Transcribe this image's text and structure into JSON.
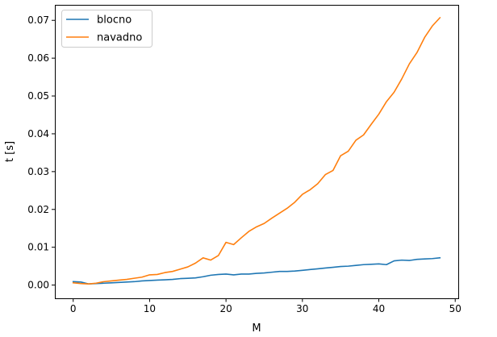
{
  "chart_data": {
    "type": "line",
    "xlabel": "M",
    "ylabel": "t [s]",
    "xlim": [
      -2.4,
      50.4
    ],
    "ylim": [
      -0.0035,
      0.0741
    ],
    "xticks": [
      0,
      10,
      20,
      30,
      40,
      50
    ],
    "xtick_labels": [
      "0",
      "10",
      "20",
      "30",
      "40",
      "50"
    ],
    "yticks": [
      0.0,
      0.01,
      0.02,
      0.03,
      0.04,
      0.05,
      0.06,
      0.07
    ],
    "ytick_labels": [
      "0.00",
      "0.01",
      "0.02",
      "0.03",
      "0.04",
      "0.05",
      "0.06",
      "0.07"
    ],
    "grid": false,
    "legend_position": "top-left",
    "x": [
      0,
      1,
      2,
      3,
      4,
      5,
      6,
      7,
      8,
      9,
      10,
      11,
      12,
      13,
      14,
      15,
      16,
      17,
      18,
      19,
      20,
      21,
      22,
      23,
      24,
      25,
      26,
      27,
      28,
      29,
      30,
      31,
      32,
      33,
      34,
      35,
      36,
      37,
      38,
      39,
      40,
      41,
      42,
      43,
      44,
      45,
      46,
      47,
      48
    ],
    "series": [
      {
        "name": "blocno",
        "color": "#1f77b4",
        "values": [
          0.0009,
          0.0008,
          0.0003,
          0.0004,
          0.0005,
          0.0006,
          0.0007,
          0.0008,
          0.0009,
          0.0011,
          0.0012,
          0.0013,
          0.0014,
          0.0015,
          0.0017,
          0.0018,
          0.0019,
          0.0022,
          0.0026,
          0.0028,
          0.0029,
          0.0027,
          0.0029,
          0.0029,
          0.0031,
          0.0032,
          0.0034,
          0.0036,
          0.0036,
          0.0037,
          0.0039,
          0.0041,
          0.0043,
          0.0045,
          0.0047,
          0.0049,
          0.005,
          0.0052,
          0.0054,
          0.0055,
          0.0056,
          0.0054,
          0.0064,
          0.0066,
          0.0065,
          0.0068,
          0.0069,
          0.007,
          0.0072
        ]
      },
      {
        "name": "navadno",
        "color": "#ff7f0e",
        "values": [
          0.0006,
          0.0004,
          0.0003,
          0.0005,
          0.0009,
          0.0011,
          0.0013,
          0.0015,
          0.0018,
          0.0021,
          0.0027,
          0.0028,
          0.0033,
          0.0036,
          0.0042,
          0.0048,
          0.0058,
          0.0072,
          0.0066,
          0.0078,
          0.0113,
          0.0107,
          0.0125,
          0.0142,
          0.0154,
          0.0163,
          0.0177,
          0.019,
          0.0203,
          0.0219,
          0.024,
          0.0252,
          0.0268,
          0.0292,
          0.0303,
          0.0342,
          0.0354,
          0.0383,
          0.0397,
          0.0425,
          0.0452,
          0.0485,
          0.051,
          0.0545,
          0.0585,
          0.0615,
          0.0655,
          0.0685,
          0.0707
        ]
      }
    ]
  }
}
